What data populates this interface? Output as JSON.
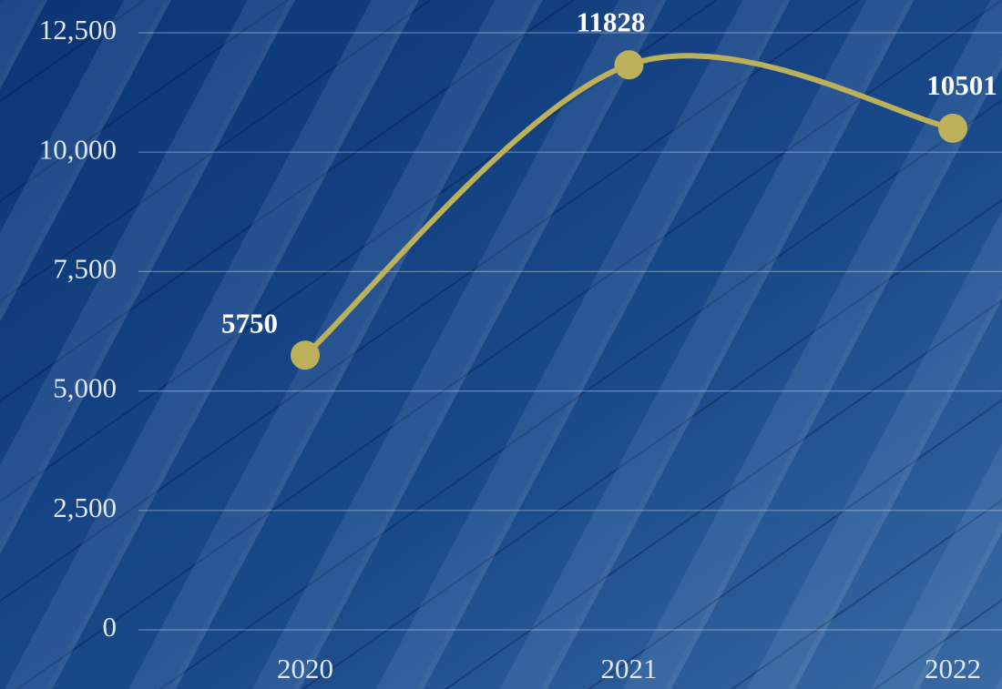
{
  "chart_data": {
    "type": "line",
    "categories": [
      "2020",
      "2021",
      "2022"
    ],
    "values": [
      5750,
      11828,
      10501
    ],
    "color": "#bcb15a",
    "ylim": [
      0,
      12500
    ],
    "yticks": [
      0,
      {
        "value": 2500,
        "label": "2,500"
      },
      {
        "value": 5000,
        "label": "5,000"
      },
      {
        "value": 7500,
        "label": "7,500"
      },
      {
        "value": 10000,
        "label": "10,000"
      },
      {
        "value": 12500,
        "label": "12,500"
      }
    ],
    "grid": true,
    "smooth": true
  }
}
